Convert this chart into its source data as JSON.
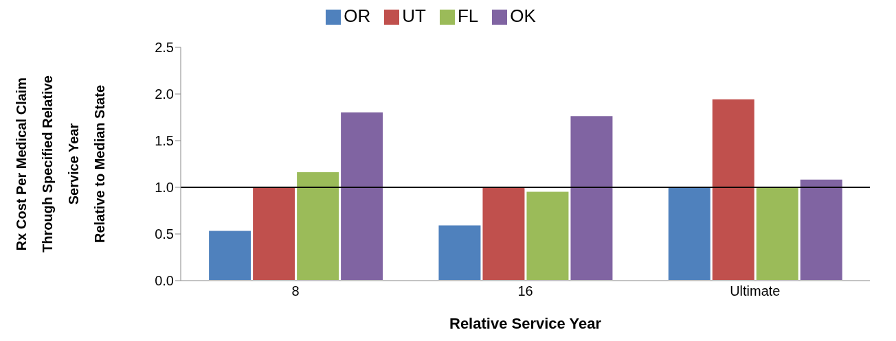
{
  "chart_data": {
    "type": "bar",
    "xlabel": "Relative Service Year",
    "ylabel": "Rx Cost Per Medical Claim\nThrough Specified Relative\nService Year\nRelative to Median State",
    "categories": [
      "8",
      "16",
      "Ultimate"
    ],
    "series": [
      {
        "name": "OR",
        "color": "#4f81bd",
        "values": [
          0.54,
          0.6,
          1.0
        ]
      },
      {
        "name": "UT",
        "color": "#c0504d",
        "values": [
          1.0,
          1.0,
          1.95
        ]
      },
      {
        "name": "FL",
        "color": "#9bbb59",
        "values": [
          1.17,
          0.96,
          1.0
        ]
      },
      {
        "name": "OK",
        "color": "#8064a2",
        "values": [
          1.81,
          1.77,
          1.09
        ]
      }
    ],
    "ylim": [
      0,
      2.5
    ],
    "yticks": [
      {
        "value": 0,
        "label": "0.0"
      },
      {
        "value": 0.5,
        "label": "0.5"
      },
      {
        "value": 1,
        "label": "1.0"
      },
      {
        "value": 1.5,
        "label": "1.5"
      },
      {
        "value": 2,
        "label": "2.0"
      },
      {
        "value": 2.5,
        "label": "2.5"
      }
    ],
    "ref_lines": [
      {
        "axis": "y",
        "value": 1,
        "color": "#000000"
      }
    ],
    "legend": "top",
    "grid": false
  }
}
